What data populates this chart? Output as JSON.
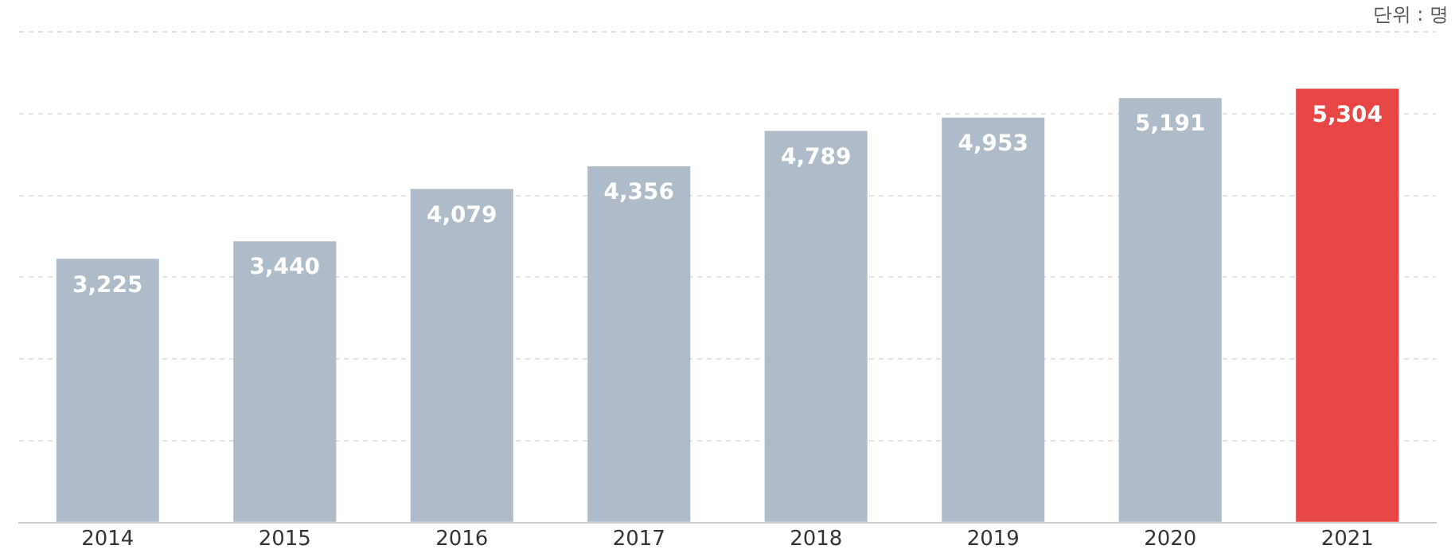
{
  "chart_data": {
    "type": "bar",
    "annotations": [
      "단위 : 명"
    ],
    "categories": [
      "2014",
      "2015",
      "2016",
      "2017",
      "2018",
      "2019",
      "2020",
      "2021"
    ],
    "values": [
      3225,
      3440,
      4079,
      4356,
      4789,
      4953,
      5191,
      5304
    ],
    "colors": [
      "#aebbc9",
      "#aebbc9",
      "#aebbc9",
      "#aebbc9",
      "#aebbc9",
      "#aebbc9",
      "#aebbc9",
      "#e84545"
    ],
    "value_labels": [
      "3,225",
      "3,440",
      "4,079",
      "4,356",
      "4,789",
      "4,953",
      "5,191",
      "5,304"
    ],
    "grid": "y",
    "tick_labels": "x"
  }
}
